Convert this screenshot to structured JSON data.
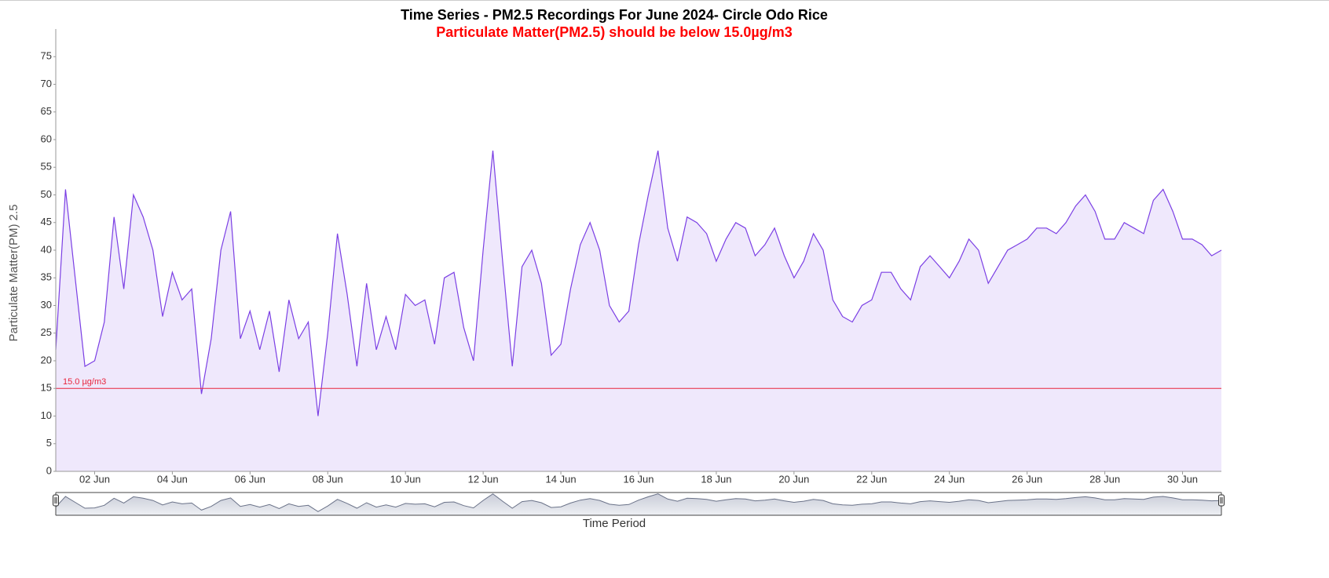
{
  "chart_data": {
    "type": "area",
    "title": "Time Series - PM2.5 Recordings For June 2024- Circle Odo Rice",
    "subtitle": "Particulate Matter(PM2.5) should be below 15.0µg/m3",
    "y_label": "Particulate Matter(PM) 2.5",
    "x_label": "Time Period",
    "period_input": "30",
    "color": "#7b3fe4",
    "fill": "#efe8fc",
    "threshold": {
      "value": 15,
      "label": "15.0 µg/m3",
      "color": "#e8243c"
    },
    "xlim": [
      1,
      31
    ],
    "ylim": [
      0,
      80
    ],
    "yticks": [
      0,
      5,
      10,
      15,
      20,
      25,
      30,
      35,
      40,
      45,
      50,
      55,
      60,
      65,
      70,
      75
    ],
    "xticks": [
      {
        "value": 2,
        "label": "02 Jun"
      },
      {
        "value": 4,
        "label": "04 Jun"
      },
      {
        "value": 6,
        "label": "06 Jun"
      },
      {
        "value": 8,
        "label": "08 Jun"
      },
      {
        "value": 10,
        "label": "10 Jun"
      },
      {
        "value": 12,
        "label": "12 Jun"
      },
      {
        "value": 14,
        "label": "14 Jun"
      },
      {
        "value": 16,
        "label": "16 Jun"
      },
      {
        "value": 18,
        "label": "18 Jun"
      },
      {
        "value": 20,
        "label": "20 Jun"
      },
      {
        "value": 22,
        "label": "22 Jun"
      },
      {
        "value": 24,
        "label": "24 Jun"
      },
      {
        "value": 26,
        "label": "26 Jun"
      },
      {
        "value": 28,
        "label": "28 Jun"
      },
      {
        "value": 30,
        "label": "30 Jun"
      }
    ],
    "x": [
      1,
      1.25,
      1.5,
      1.75,
      2,
      2.25,
      2.5,
      2.75,
      3,
      3.25,
      3.5,
      3.75,
      4,
      4.25,
      4.5,
      4.75,
      5,
      5.25,
      5.5,
      5.75,
      6,
      6.25,
      6.5,
      6.75,
      7,
      7.25,
      7.5,
      7.75,
      8,
      8.25,
      8.5,
      8.75,
      9,
      9.25,
      9.5,
      9.75,
      10,
      10.25,
      10.5,
      10.75,
      11,
      11.25,
      11.5,
      11.75,
      12,
      12.25,
      12.5,
      12.75,
      13,
      13.25,
      13.5,
      13.75,
      14,
      14.25,
      14.5,
      14.75,
      15,
      15.25,
      15.5,
      15.75,
      16,
      16.25,
      16.5,
      16.75,
      17,
      17.25,
      17.5,
      17.75,
      18,
      18.25,
      18.5,
      18.75,
      19,
      19.25,
      19.5,
      19.75,
      20,
      20.25,
      20.5,
      20.75,
      21,
      21.25,
      21.5,
      21.75,
      22,
      22.25,
      22.5,
      22.75,
      23,
      23.25,
      23.5,
      23.75,
      24,
      24.25,
      24.5,
      24.75,
      25,
      25.25,
      25.5,
      25.75,
      26,
      26.25,
      26.5,
      26.75,
      27,
      27.25,
      27.5,
      27.75,
      28,
      28.25,
      28.5,
      28.75,
      29,
      29.25,
      29.5,
      29.75,
      30,
      30.25,
      30.5,
      30.75,
      31
    ],
    "values": [
      22,
      51,
      35,
      19,
      20,
      27,
      46,
      33,
      50,
      46,
      40,
      28,
      36,
      31,
      33,
      14,
      24,
      40,
      47,
      24,
      29,
      22,
      29,
      18,
      31,
      24,
      27,
      10,
      25,
      43,
      32,
      19,
      34,
      22,
      28,
      22,
      32,
      30,
      31,
      23,
      35,
      36,
      26,
      20,
      40,
      58,
      38,
      19,
      37,
      40,
      34,
      21,
      23,
      33,
      41,
      45,
      40,
      30,
      27,
      29,
      41,
      50,
      58,
      44,
      38,
      46,
      45,
      43,
      38,
      42,
      45,
      44,
      39,
      41,
      44,
      39,
      35,
      38,
      43,
      40,
      31,
      28,
      27,
      30,
      31,
      36,
      36,
      33,
      31,
      37,
      39,
      37,
      35,
      38,
      42,
      40,
      34,
      37,
      40,
      41,
      42,
      44,
      44,
      43,
      45,
      48,
      50,
      47,
      42,
      42,
      45,
      44,
      43,
      49,
      51,
      47,
      42,
      42,
      41,
      39,
      40
    ]
  }
}
